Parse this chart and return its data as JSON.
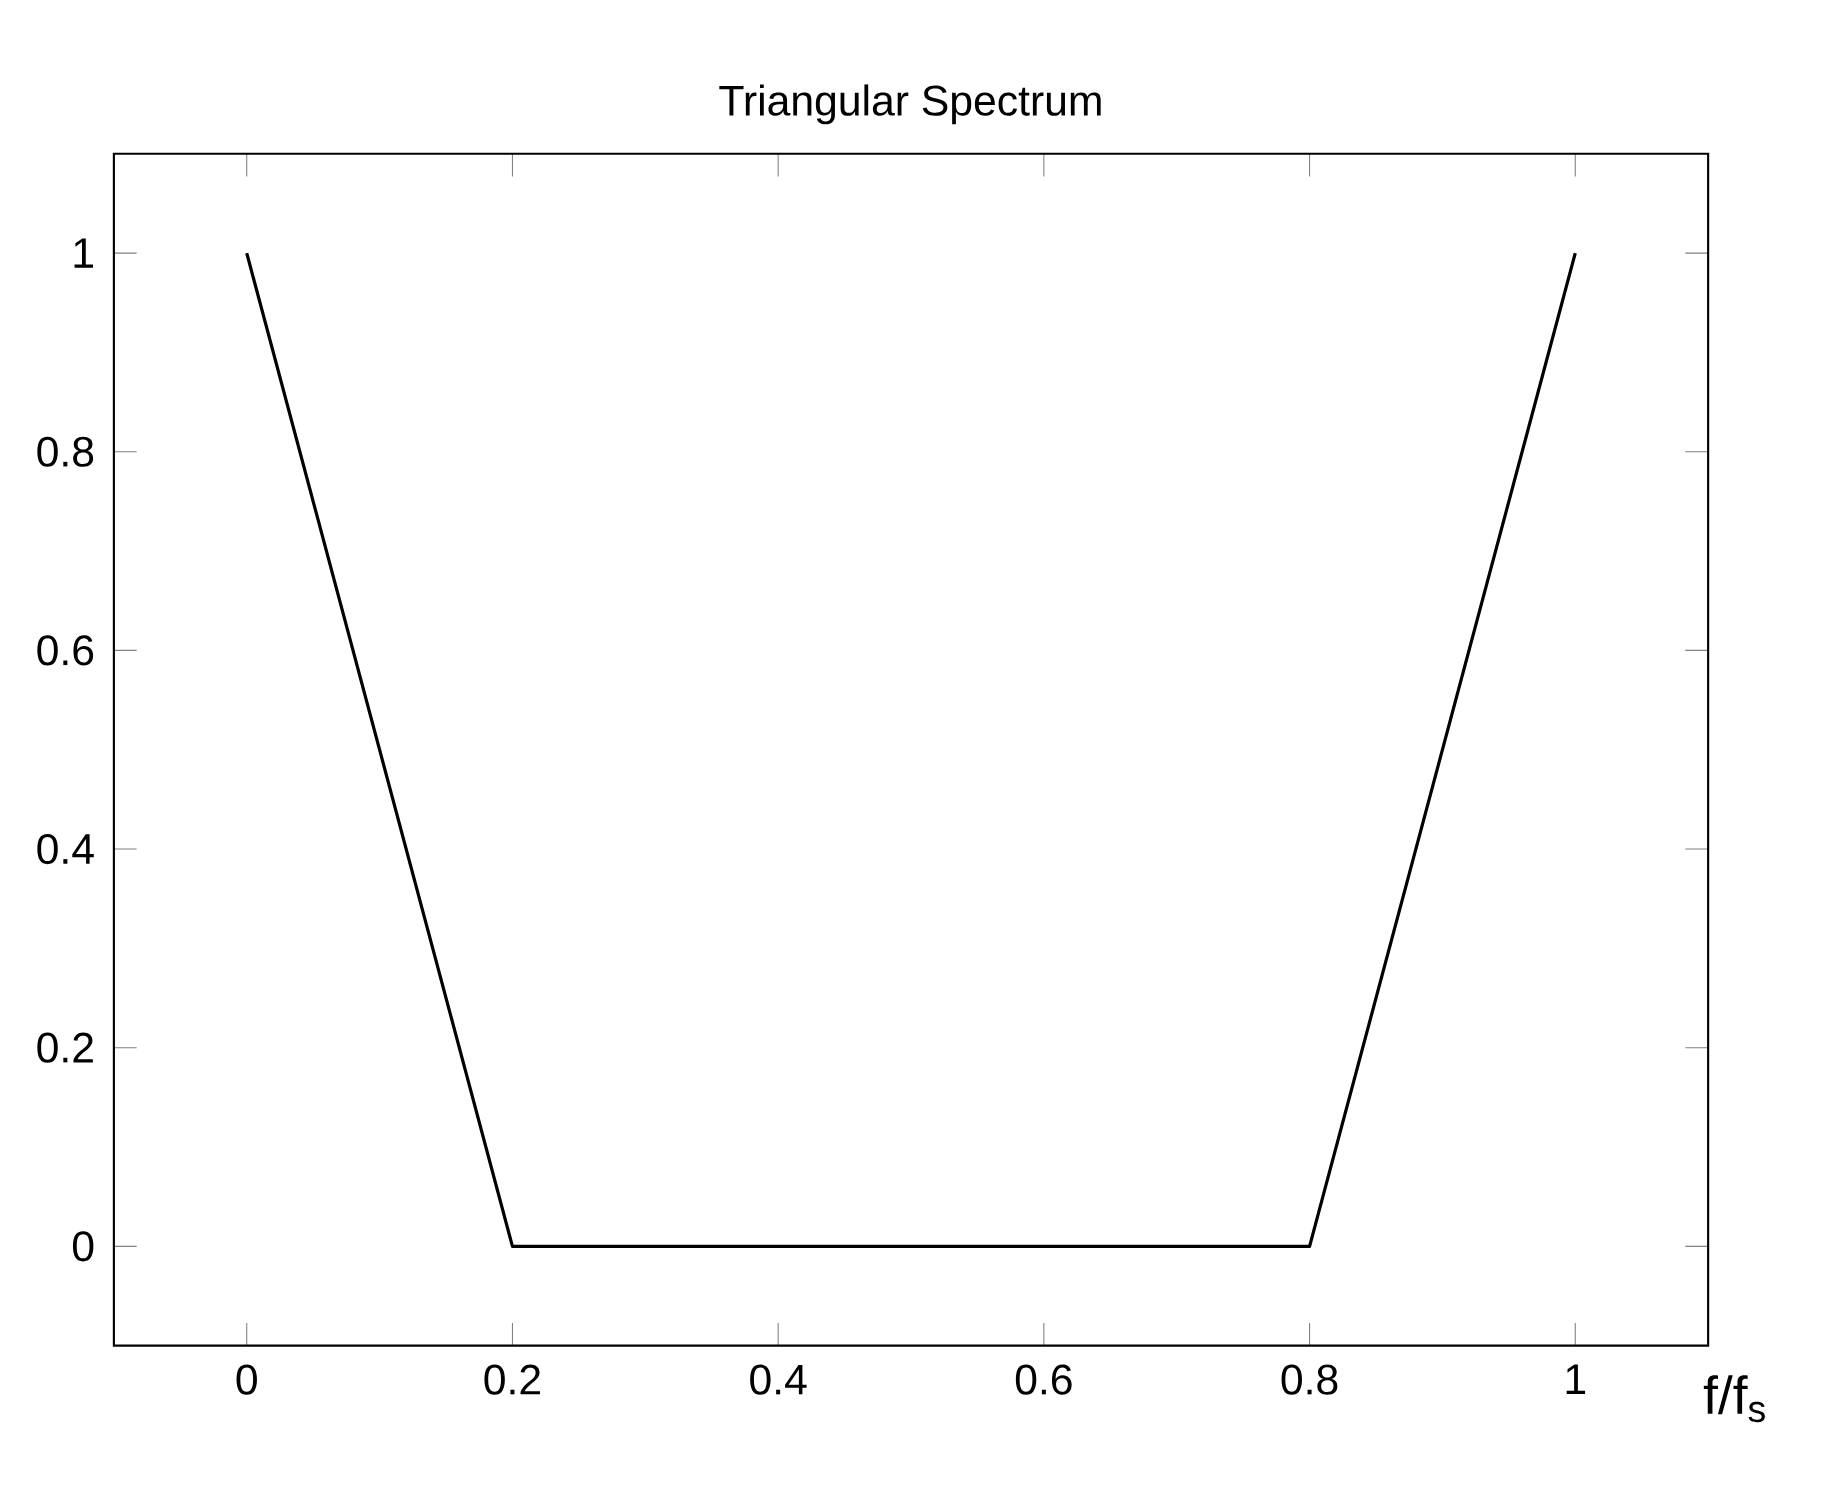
{
  "chart_data": {
    "type": "line",
    "title": "Triangular Spectrum",
    "xlabel": "f/f$_{s}$",
    "x": [
      0,
      0.2,
      0.8,
      1
    ],
    "series": [
      {
        "color": "#000000",
        "values": [
          1,
          0,
          0,
          1
        ]
      }
    ],
    "xlim": [
      -0.1,
      1.1
    ],
    "ylim": [
      -0.1,
      1.1
    ],
    "xticks": [
      0,
      0.2,
      0.4,
      0.6,
      0.8,
      1
    ],
    "yticks": [
      0,
      0.2,
      0.4,
      0.6,
      0.8,
      1
    ],
    "grid": false,
    "marker": "none",
    "line_style": "solid"
  }
}
